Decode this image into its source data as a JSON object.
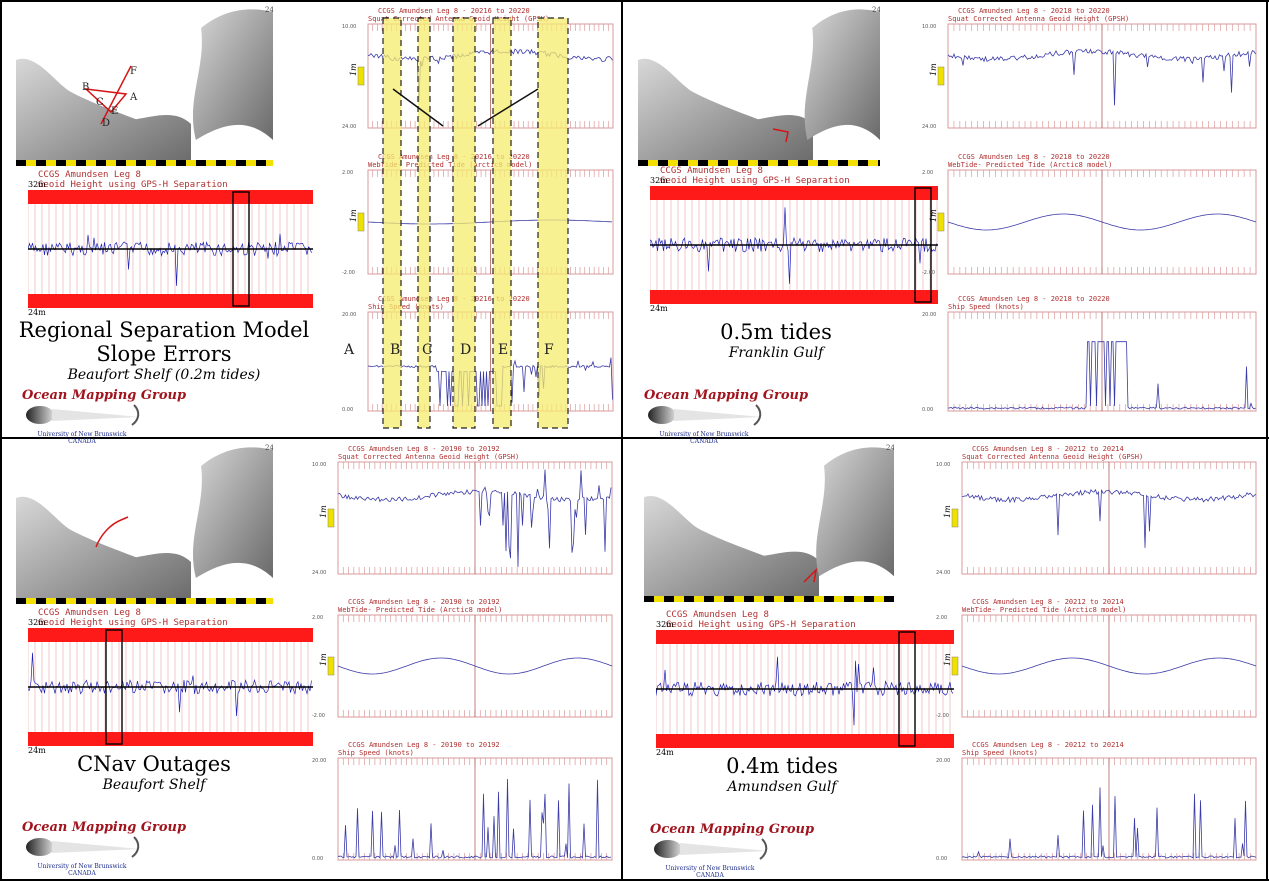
{
  "colors": {
    "red_band": "#ff1a1a",
    "signal": "#1e22b4",
    "trace": "#3a3aa8",
    "grid": "#d99a9a",
    "yellow": "#f5ec6e",
    "brand": "#a0141e"
  },
  "map_labels": {
    "scale_top": "32m",
    "scale_bottom": "24m",
    "zone": "24"
  },
  "strip_title": {
    "line1": "CCGS Amundsen Leg 8",
    "line2": "Geoid Height using GPS-H Separation"
  },
  "letters": [
    "A",
    "B",
    "C",
    "D",
    "E",
    "F"
  ],
  "branding": {
    "title": "Ocean Mapping Group",
    "line1": "University of New Brunswick",
    "line2": "CANADA"
  },
  "panels": [
    {
      "caption": [
        "Regional Separation Model",
        "Slope Errors"
      ],
      "subcaption": "Beaufort Shelf (0.2m tides)",
      "graphs": [
        {
          "title": "CCGS Amundsen Leg 8 - 20216 to 20220",
          "subtitle": "Squat Corrected Antenna Geoid Height (GPSH)",
          "ytop": "10.00",
          "ybot": "24.00",
          "unit": "1m"
        },
        {
          "title": "CCGS Amundsen Leg 8 - 20216 to 20220",
          "subtitle": "WebTide- Predicted Tide (Arctic8 model)",
          "ytop": "2.00",
          "ybot": "-2.00",
          "unit": "1m"
        },
        {
          "title": "CCGS Amundsen Leg 8 - 20216 to 20220",
          "subtitle": "Ship Speed (knots)",
          "ytop": "20.00",
          "ybot": "0.00",
          "unit": ""
        }
      ]
    },
    {
      "caption": [
        "0.5m tides"
      ],
      "subcaption": "Franklin Gulf",
      "graphs": [
        {
          "title": "CCGS Amundsen Leg 8 - 20218 to 20220",
          "subtitle": "Squat Corrected Antenna Geoid Height (GPSH)",
          "ytop": "10.00",
          "ybot": "24.00",
          "unit": "1m"
        },
        {
          "title": "CCGS Amundsen Leg 8 - 20218 to 20220",
          "subtitle": "WebTide- Predicted Tide (Arctic8 model)",
          "ytop": "2.00",
          "ybot": "-2.00",
          "unit": "1m"
        },
        {
          "title": "CCGS Amundsen Leg 8 - 20218 to 20220",
          "subtitle": "Ship Speed (knots)",
          "ytop": "20.00",
          "ybot": "0.00",
          "unit": ""
        }
      ]
    },
    {
      "caption": [
        "CNav Outages"
      ],
      "subcaption": "Beaufort Shelf",
      "graphs": [
        {
          "title": "CCGS Amundsen Leg 8 - 20190 to 20192",
          "subtitle": "Squat Corrected Antenna Geoid Height (GPSH)",
          "ytop": "10.00",
          "ybot": "24.00",
          "unit": "1m"
        },
        {
          "title": "CCGS Amundsen Leg 8 - 20190 to 20192",
          "subtitle": "WebTide- Predicted Tide (Arctic8 model)",
          "ytop": "2.00",
          "ybot": "-2.00",
          "unit": "1m"
        },
        {
          "title": "CCGS Amundsen Leg 8 - 20190 to 20192",
          "subtitle": "Ship Speed (knots)",
          "ytop": "20.00",
          "ybot": "0.00",
          "unit": ""
        }
      ]
    },
    {
      "caption": [
        "0.4m tides"
      ],
      "subcaption": "Amundsen Gulf",
      "graphs": [
        {
          "title": "CCGS Amundsen Leg 8 - 20212 to 20214",
          "subtitle": "Squat Corrected Antenna Geoid Height (GPSH)",
          "ytop": "10.00",
          "ybot": "24.00",
          "unit": "1m"
        },
        {
          "title": "CCGS Amundsen Leg 8 - 20212 to 20214",
          "subtitle": "WebTide- Predicted Tide (Arctic8 model)",
          "ytop": "2.00",
          "ybot": "-2.00",
          "unit": "1m"
        },
        {
          "title": "CCGS Amundsen Leg 8 - 20212 to 20214",
          "subtitle": "Ship Speed (knots)",
          "ytop": "20.00",
          "ybot": "0.00",
          "unit": ""
        }
      ]
    }
  ]
}
